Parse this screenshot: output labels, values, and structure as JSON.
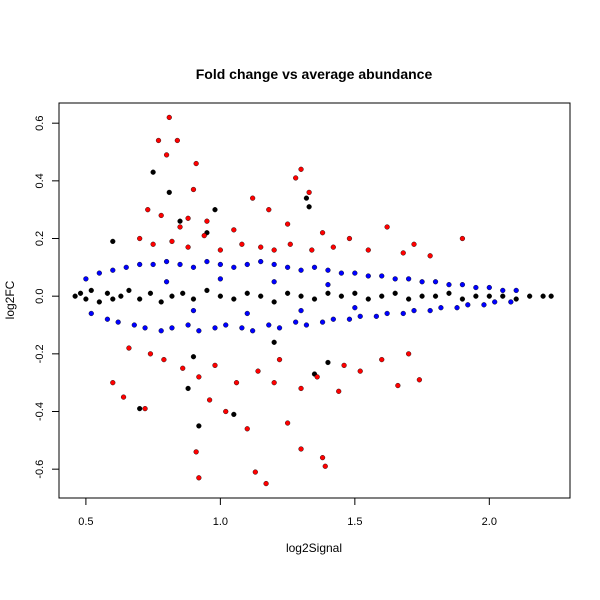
{
  "chart_data": {
    "type": "scatter",
    "title": "Fold change vs average abundance",
    "xlabel": "log2Signal",
    "ylabel": "log2FC",
    "xlim": [
      0.4,
      2.3
    ],
    "ylim": [
      -0.7,
      0.67
    ],
    "x_ticks": [
      "0.5",
      "1.0",
      "1.5",
      "2.0"
    ],
    "y_ticks": [
      "-0.6",
      "-0.4",
      "-0.2",
      "0.0",
      "0.2",
      "0.4",
      "0.6"
    ],
    "grid": false,
    "legend": "none",
    "colors": {
      "black": "#000000",
      "blue": "#0000ff",
      "red": "#ff0000"
    },
    "series": [
      {
        "color": "black",
        "x": [
          0.46,
          0.48,
          0.5,
          0.52,
          0.55,
          0.58,
          0.6,
          0.63,
          0.66,
          0.7,
          0.74,
          0.78,
          0.82,
          0.86,
          0.9,
          0.95,
          1.0,
          1.05,
          1.1,
          1.15,
          1.2,
          1.25,
          1.3,
          1.35,
          1.4,
          1.45,
          1.5,
          1.55,
          1.6,
          1.65,
          1.7,
          1.75,
          1.8,
          1.85,
          1.9,
          1.95,
          2.0,
          2.05,
          2.1,
          2.15,
          2.2,
          2.23,
          0.75,
          0.81,
          0.88,
          0.92,
          0.98,
          1.05,
          1.32,
          1.35,
          0.7,
          0.9,
          0.95,
          1.4,
          0.6,
          0.85,
          1.2,
          1.33
        ],
        "y": [
          0.0,
          0.01,
          -0.01,
          0.02,
          -0.02,
          0.01,
          -0.01,
          0.0,
          0.02,
          -0.01,
          0.01,
          -0.02,
          0.0,
          0.01,
          -0.01,
          0.02,
          0.0,
          -0.01,
          0.01,
          0.0,
          -0.02,
          0.01,
          0.0,
          -0.01,
          0.01,
          0.0,
          0.01,
          -0.01,
          0.0,
          0.01,
          -0.01,
          0.0,
          0.0,
          0.01,
          -0.01,
          0.0,
          0.0,
          0.0,
          -0.01,
          0.0,
          0.0,
          0.0,
          0.43,
          0.36,
          -0.32,
          -0.45,
          0.3,
          -0.41,
          0.34,
          -0.27,
          -0.39,
          -0.21,
          0.22,
          -0.23,
          0.19,
          0.26,
          -0.16,
          0.31
        ]
      },
      {
        "color": "blue",
        "x": [
          0.5,
          0.55,
          0.6,
          0.65,
          0.7,
          0.75,
          0.8,
          0.85,
          0.9,
          0.95,
          1.0,
          1.05,
          1.1,
          1.15,
          1.2,
          1.25,
          1.3,
          1.35,
          1.4,
          1.45,
          1.5,
          1.55,
          1.6,
          1.65,
          1.7,
          1.75,
          1.8,
          1.85,
          1.9,
          1.95,
          2.0,
          2.05,
          2.1,
          0.52,
          0.58,
          0.62,
          0.68,
          0.72,
          0.78,
          0.82,
          0.88,
          0.92,
          0.98,
          1.02,
          1.08,
          1.12,
          1.18,
          1.22,
          1.28,
          1.32,
          1.38,
          1.42,
          1.48,
          1.52,
          1.58,
          1.62,
          1.68,
          1.72,
          1.78,
          1.82,
          1.88,
          1.92,
          1.98,
          2.02,
          2.08,
          0.8,
          1.0,
          1.2,
          1.4,
          0.9,
          1.1,
          1.3,
          1.5
        ],
        "y": [
          0.06,
          0.08,
          0.09,
          0.1,
          0.11,
          0.11,
          0.12,
          0.11,
          0.1,
          0.12,
          0.11,
          0.1,
          0.11,
          0.12,
          0.11,
          0.1,
          0.09,
          0.1,
          0.09,
          0.08,
          0.08,
          0.07,
          0.07,
          0.06,
          0.06,
          0.05,
          0.05,
          0.04,
          0.04,
          0.03,
          0.03,
          0.02,
          0.02,
          -0.06,
          -0.08,
          -0.09,
          -0.1,
          -0.11,
          -0.12,
          -0.11,
          -0.1,
          -0.12,
          -0.11,
          -0.1,
          -0.11,
          -0.12,
          -0.1,
          -0.11,
          -0.09,
          -0.1,
          -0.09,
          -0.08,
          -0.08,
          -0.07,
          -0.07,
          -0.06,
          -0.06,
          -0.05,
          -0.05,
          -0.04,
          -0.04,
          -0.03,
          -0.03,
          -0.02,
          -0.02,
          0.05,
          0.06,
          0.05,
          0.04,
          -0.05,
          -0.06,
          -0.05,
          -0.04
        ]
      },
      {
        "color": "red",
        "x": [
          0.81,
          0.84,
          0.77,
          0.8,
          0.91,
          0.9,
          0.73,
          0.78,
          0.85,
          0.88,
          0.95,
          1.05,
          1.12,
          1.18,
          1.25,
          1.28,
          1.3,
          1.33,
          1.38,
          1.48,
          1.62,
          1.72,
          1.9,
          0.7,
          0.75,
          0.82,
          0.88,
          0.94,
          1.0,
          1.08,
          1.15,
          1.2,
          1.26,
          1.34,
          1.42,
          1.55,
          1.68,
          1.78,
          0.66,
          0.74,
          0.79,
          0.86,
          0.92,
          0.98,
          1.06,
          1.14,
          1.22,
          1.3,
          1.36,
          1.46,
          1.6,
          1.7,
          0.91,
          0.92,
          1.13,
          1.17,
          1.25,
          1.3,
          1.38,
          1.39,
          0.6,
          0.64,
          0.72,
          0.96,
          1.02,
          1.1,
          1.2,
          1.44,
          1.52,
          1.66,
          1.74
        ],
        "y": [
          0.62,
          0.54,
          0.54,
          0.49,
          0.46,
          0.37,
          0.3,
          0.28,
          0.24,
          0.27,
          0.26,
          0.23,
          0.34,
          0.3,
          0.25,
          0.41,
          0.44,
          0.36,
          0.22,
          0.2,
          0.24,
          0.18,
          0.2,
          0.2,
          0.18,
          0.19,
          0.17,
          0.21,
          0.16,
          0.18,
          0.17,
          0.16,
          0.18,
          0.16,
          0.17,
          0.16,
          0.15,
          0.14,
          -0.18,
          -0.2,
          -0.22,
          -0.25,
          -0.28,
          -0.24,
          -0.3,
          -0.26,
          -0.22,
          -0.32,
          -0.28,
          -0.24,
          -0.22,
          -0.2,
          -0.54,
          -0.63,
          -0.61,
          -0.65,
          -0.44,
          -0.53,
          -0.56,
          -0.59,
          -0.3,
          -0.35,
          -0.39,
          -0.36,
          -0.4,
          -0.46,
          -0.3,
          -0.33,
          -0.26,
          -0.31,
          -0.29
        ]
      }
    ]
  }
}
